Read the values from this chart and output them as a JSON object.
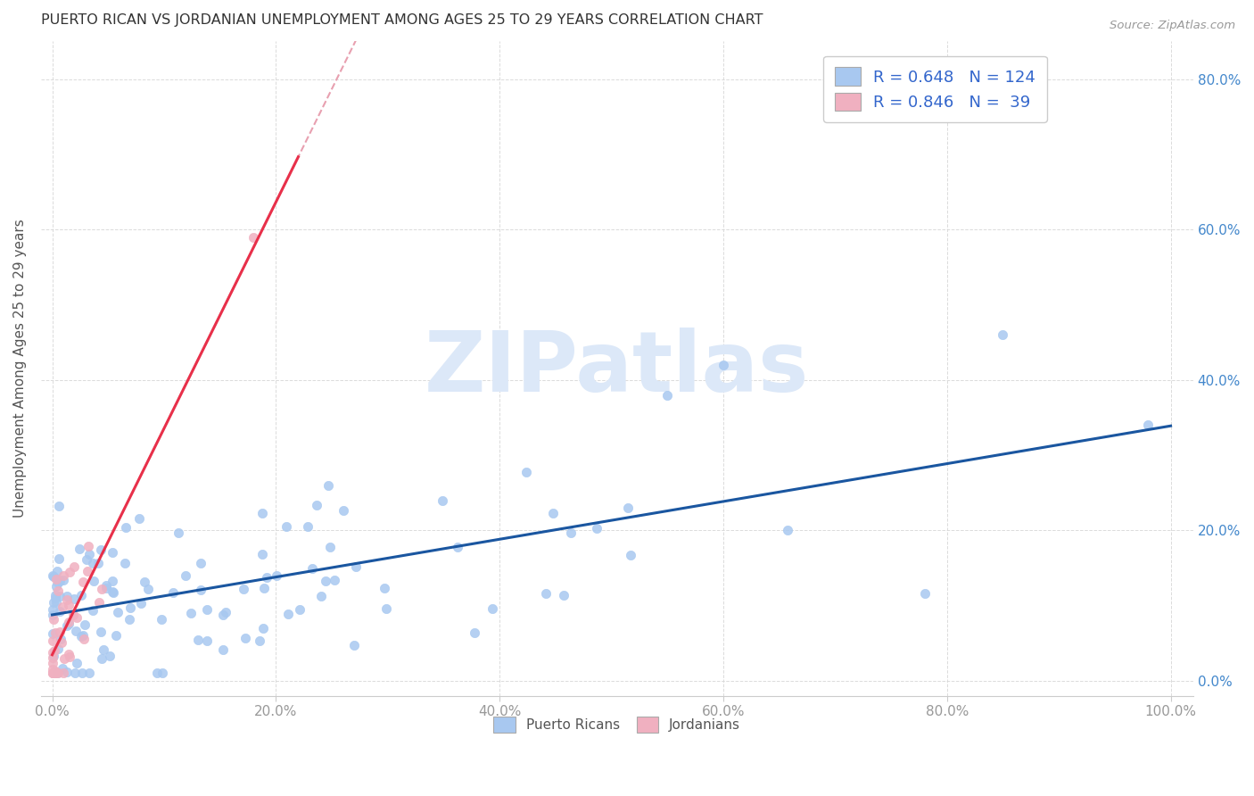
{
  "title": "PUERTO RICAN VS JORDANIAN UNEMPLOYMENT AMONG AGES 25 TO 29 YEARS CORRELATION CHART",
  "source": "Source: ZipAtlas.com",
  "ylabel": "Unemployment Among Ages 25 to 29 years",
  "xlim": [
    0,
    1.0
  ],
  "ylim": [
    0,
    0.85
  ],
  "xticks": [
    0.0,
    0.2,
    0.4,
    0.6,
    0.8,
    1.0
  ],
  "xtick_labels": [
    "0.0%",
    "20.0%",
    "40.0%",
    "60.0%",
    "80.0%",
    "100.0%"
  ],
  "ytick_labels": [
    "0.0%",
    "20.0%",
    "40.0%",
    "60.0%",
    "80.0%"
  ],
  "yticks": [
    0.0,
    0.2,
    0.4,
    0.6,
    0.8
  ],
  "legend_pr_R": "0.648",
  "legend_pr_N": "124",
  "legend_jo_R": "0.846",
  "legend_jo_N": " 39",
  "pr_color": "#a8c8f0",
  "jo_color": "#f0b0c0",
  "pr_line_color": "#1a56a0",
  "jo_line_color": "#e8304a",
  "jo_dash_color": "#e8a0b0",
  "background_color": "#ffffff",
  "watermark_color": "#dce8f8",
  "grid_color": "#d8d8d8"
}
